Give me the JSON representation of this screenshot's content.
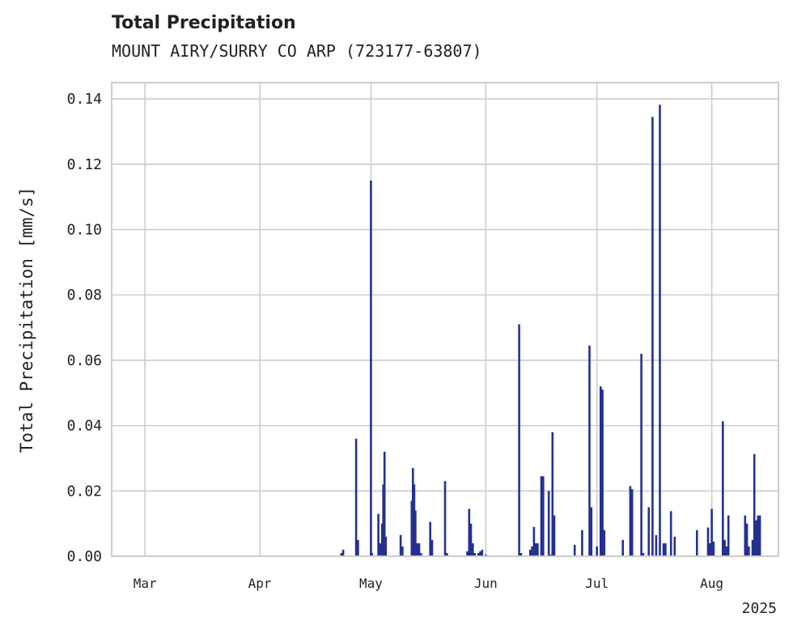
{
  "chart_data": {
    "type": "bar",
    "title": "Total Precipitation",
    "subtitle": "MOUNT AIRY/SURRY CO ARP (723177-63807)",
    "xlabel": "",
    "ylabel": "Total Precipitation [mm/s]",
    "ylim": [
      0,
      0.145
    ],
    "xlim": [
      "2025-02-20",
      "2025-08-19"
    ],
    "grid": true,
    "y_ticks": [
      "0.00",
      "0.02",
      "0.04",
      "0.06",
      "0.08",
      "0.10",
      "0.12",
      "0.14"
    ],
    "x_ticks": [
      {
        "date": "2025-03-01",
        "label": "Mar"
      },
      {
        "date": "2025-04-01",
        "label": "Apr"
      },
      {
        "date": "2025-05-01",
        "label": "May"
      },
      {
        "date": "2025-06-01",
        "label": "Jun"
      },
      {
        "date": "2025-07-01",
        "label": "Jul"
      },
      {
        "date": "2025-08-01",
        "label": "Aug"
      }
    ],
    "x_offset_label": "2025",
    "color": "#24318f",
    "series": [
      {
        "x": [
          "2025-04-23",
          "2025-04-23T12:00",
          "2025-04-27",
          "2025-04-27T12:00",
          "2025-05-01",
          "2025-05-01T06:00",
          "2025-05-03",
          "2025-05-03T12:00",
          "2025-05-04",
          "2025-05-04T08:00",
          "2025-05-04T16:00",
          "2025-05-05",
          "2025-05-09",
          "2025-05-09T12:00",
          "2025-05-12",
          "2025-05-12T08:00",
          "2025-05-12T16:00",
          "2025-05-13",
          "2025-05-13T12:00",
          "2025-05-14",
          "2025-05-14T12:00",
          "2025-05-17",
          "2025-05-17T12:00",
          "2025-05-21",
          "2025-05-21T12:00",
          "2025-05-27",
          "2025-05-27T12:00",
          "2025-05-28",
          "2025-05-28T12:00",
          "2025-05-29",
          "2025-05-30",
          "2025-05-30T12:00",
          "2025-05-31",
          "2025-06-01",
          "2025-06-10",
          "2025-06-10T12:00",
          "2025-06-13",
          "2025-06-13T12:00",
          "2025-06-14",
          "2025-06-14T12:00",
          "2025-06-15",
          "2025-06-16",
          "2025-06-16T12:00",
          "2025-06-18",
          "2025-06-18T12:00",
          "2025-06-19",
          "2025-06-19T12:00",
          "2025-06-25",
          "2025-06-27",
          "2025-06-29",
          "2025-06-29T12:00",
          "2025-07-01",
          "2025-07-02",
          "2025-07-02T12:00",
          "2025-07-03",
          "2025-07-08",
          "2025-07-10",
          "2025-07-10T12:00",
          "2025-07-13",
          "2025-07-13T12:00",
          "2025-07-15",
          "2025-07-16",
          "2025-07-17",
          "2025-07-18",
          "2025-07-19",
          "2025-07-19T12:00",
          "2025-07-21",
          "2025-07-22",
          "2025-07-28",
          "2025-07-31",
          "2025-07-31T12:00",
          "2025-08-01",
          "2025-08-01T12:00",
          "2025-08-04",
          "2025-08-04T12:00",
          "2025-08-05",
          "2025-08-05T12:00",
          "2025-08-10",
          "2025-08-10T12:00",
          "2025-08-11",
          "2025-08-12",
          "2025-08-12T12:00",
          "2025-08-13",
          "2025-08-13T12:00",
          "2025-08-14"
        ],
        "values": [
          0.001,
          0.002,
          0.036,
          0.005,
          0.115,
          0.001,
          0.013,
          0.004,
          0.01,
          0.022,
          0.032,
          0.006,
          0.0065,
          0.003,
          0.017,
          0.027,
          0.022,
          0.014,
          0.004,
          0.004,
          0.001,
          0.0105,
          0.005,
          0.023,
          0.001,
          0.0015,
          0.0145,
          0.01,
          0.004,
          0.001,
          0.001,
          0.0015,
          0.002,
          0.0005,
          0.071,
          0.001,
          0.002,
          0.003,
          0.009,
          0.004,
          0.004,
          0.0245,
          0.0245,
          0.02,
          0.0005,
          0.038,
          0.0125,
          0.0035,
          0.008,
          0.0645,
          0.015,
          0.003,
          0.052,
          0.051,
          0.008,
          0.005,
          0.0215,
          0.0205,
          0.062,
          0.001,
          0.015,
          0.1345,
          0.0065,
          0.1382,
          0.004,
          0.004,
          0.0138,
          0.006,
          0.008,
          0.0088,
          0.004,
          0.0145,
          0.0045,
          0.0413,
          0.005,
          0.003,
          0.0125,
          0.0125,
          0.01,
          0.003,
          0.005,
          0.0313,
          0.011,
          0.0125,
          0.0125
        ]
      }
    ]
  }
}
